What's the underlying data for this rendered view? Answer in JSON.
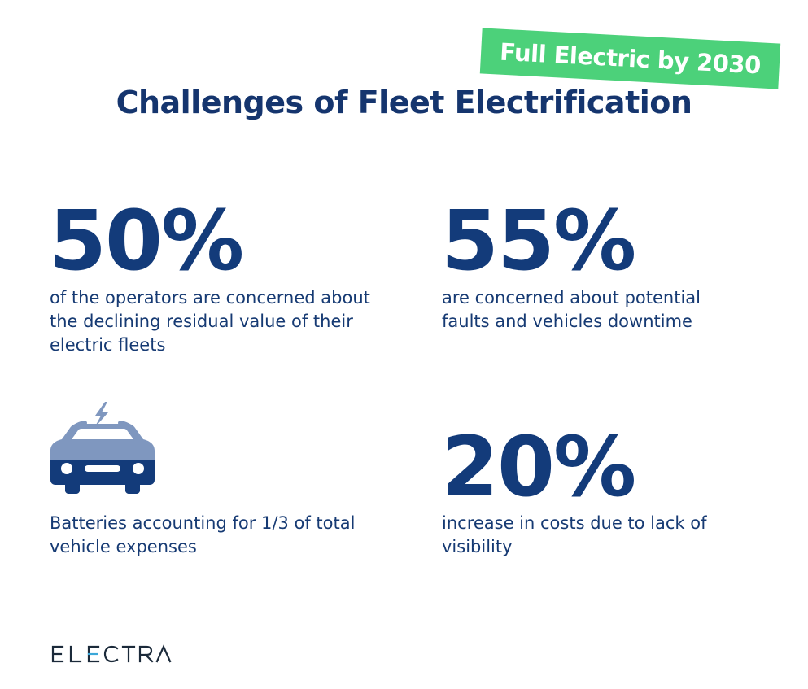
{
  "tag": {
    "text": "Full Electric by 2030",
    "color": "#4cd17a"
  },
  "title": "Challenges of Fleet Electrification",
  "stats": [
    {
      "value": "50%",
      "description": "of the operators are concerned about the declining residual value of their electric fleets"
    },
    {
      "value": "55%",
      "description": "are concerned about potential faults and vehicles downtime"
    },
    {
      "icon": "electric-car-icon",
      "description": "Batteries accounting for 1/3 of total vehicle expenses"
    },
    {
      "value": "20%",
      "description": "increase in costs due to lack of visibility"
    }
  ],
  "logo": {
    "text": "ELECTRA"
  },
  "colors": {
    "primary": "#133b7a",
    "icon_light": "#7f97bf",
    "accent": "#4cd17a",
    "logo_highlight": "#3aa7d8"
  }
}
